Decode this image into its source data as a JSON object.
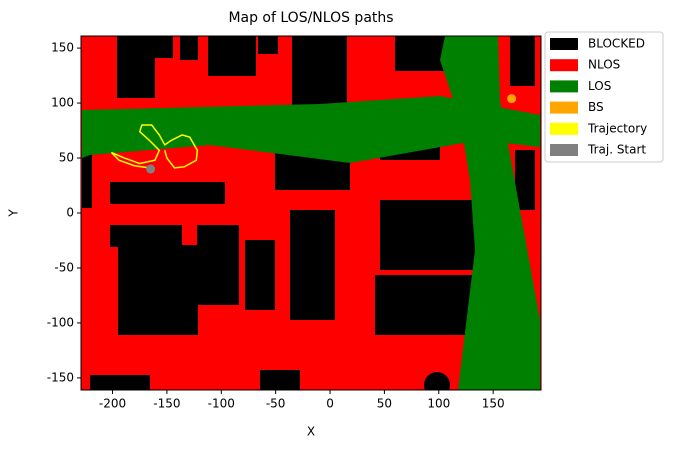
{
  "chart_data": {
    "type": "map",
    "title": "Map of LOS/NLOS paths",
    "x_label": "X",
    "y_label": "Y",
    "xlim": [
      -229,
      194
    ],
    "ylim": [
      -161,
      161
    ],
    "xticks": [
      -200,
      -150,
      -100,
      -50,
      0,
      50,
      100,
      150
    ],
    "yticks": [
      -150,
      -100,
      -50,
      0,
      50,
      100,
      150
    ],
    "regions": [
      {
        "name": "BLOCKED",
        "color": "#000000"
      },
      {
        "name": "NLOS",
        "color": "#ff0000"
      },
      {
        "name": "LOS",
        "color": "#008000"
      }
    ],
    "series": [
      {
        "name": "BS",
        "color": "#ffa500",
        "mode": "markers",
        "x": [
          167
        ],
        "y": [
          104
        ]
      },
      {
        "name": "Trajectory",
        "color": "#ffff00",
        "mode": "line",
        "x": [
          -166,
          -180,
          -194,
          -201,
          -189,
          -175,
          -161,
          -157,
          -166,
          -175,
          -173,
          -164,
          -157,
          -152,
          -146,
          -136,
          -129,
          -122,
          -123,
          -134,
          -143,
          -150,
          -152
        ],
        "y": [
          41,
          43,
          48,
          55,
          50,
          45,
          48,
          57,
          66,
          74,
          80,
          80,
          71,
          62,
          66,
          71,
          69,
          57,
          48,
          42,
          41,
          50,
          57
        ]
      },
      {
        "name": "Traj. Start",
        "color": "#808080",
        "mode": "markers",
        "x": [
          -165
        ],
        "y": [
          40
        ]
      }
    ],
    "legend": "outside-upper-right"
  }
}
